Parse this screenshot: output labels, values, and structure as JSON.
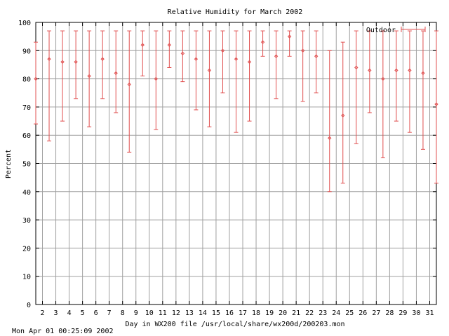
{
  "chart_data": {
    "type": "errorbar",
    "title": "Relative Humidity for March 2002",
    "xlabel": "Day in WX200 file /usr/local/share/wx200d/200203.mon",
    "ylabel": "Percent",
    "footer": "Mon Apr 01 00:25:09 2002",
    "xlim": [
      1.5,
      31.5
    ],
    "ylim": [
      0,
      100
    ],
    "x_ticks": [
      "2",
      "3",
      "4",
      "5",
      "6",
      "7",
      "8",
      "9",
      "10",
      "11",
      "12",
      "13",
      "14",
      "15",
      "16",
      "17",
      "18",
      "19",
      "20",
      "21",
      "22",
      "23",
      "24",
      "25",
      "26",
      "27",
      "28",
      "29",
      "30",
      "31"
    ],
    "y_ticks": [
      "0",
      "10",
      "20",
      "30",
      "40",
      "50",
      "60",
      "70",
      "80",
      "90",
      "100"
    ],
    "grid": true,
    "legend_position": "top-right",
    "series": [
      {
        "name": "Outdoor",
        "color": "#e05050",
        "points": [
          {
            "x": 1.5,
            "y": 80,
            "low": 64,
            "high": 93
          },
          {
            "x": 2.5,
            "y": 87,
            "low": 58,
            "high": 97
          },
          {
            "x": 3.5,
            "y": 86,
            "low": 65,
            "high": 97
          },
          {
            "x": 4.5,
            "y": 86,
            "low": 73,
            "high": 97
          },
          {
            "x": 5.5,
            "y": 81,
            "low": 63,
            "high": 97
          },
          {
            "x": 6.5,
            "y": 87,
            "low": 73,
            "high": 97
          },
          {
            "x": 7.5,
            "y": 82,
            "low": 68,
            "high": 97
          },
          {
            "x": 8.5,
            "y": 78,
            "low": 54,
            "high": 97
          },
          {
            "x": 9.5,
            "y": 92,
            "low": 81,
            "high": 97
          },
          {
            "x": 10.5,
            "y": 80,
            "low": 62,
            "high": 97
          },
          {
            "x": 11.5,
            "y": 92,
            "low": 84,
            "high": 97
          },
          {
            "x": 12.5,
            "y": 89,
            "low": 79,
            "high": 97
          },
          {
            "x": 13.5,
            "y": 87,
            "low": 69,
            "high": 97
          },
          {
            "x": 14.5,
            "y": 83,
            "low": 63,
            "high": 97
          },
          {
            "x": 15.5,
            "y": 90,
            "low": 75,
            "high": 97
          },
          {
            "x": 16.5,
            "y": 87,
            "low": 61,
            "high": 97
          },
          {
            "x": 17.5,
            "y": 86,
            "low": 65,
            "high": 97
          },
          {
            "x": 18.5,
            "y": 93,
            "low": 88,
            "high": 97
          },
          {
            "x": 19.5,
            "y": 88,
            "low": 73,
            "high": 97
          },
          {
            "x": 20.5,
            "y": 95,
            "low": 88,
            "high": 97
          },
          {
            "x": 21.5,
            "y": 90,
            "low": 72,
            "high": 97
          },
          {
            "x": 22.5,
            "y": 88,
            "low": 75,
            "high": 97
          },
          {
            "x": 23.5,
            "y": 59,
            "low": 40,
            "high": 90
          },
          {
            "x": 24.5,
            "y": 67,
            "low": 43,
            "high": 93
          },
          {
            "x": 25.5,
            "y": 84,
            "low": 57,
            "high": 97
          },
          {
            "x": 26.5,
            "y": 83,
            "low": 68,
            "high": 97
          },
          {
            "x": 27.5,
            "y": 80,
            "low": 52,
            "high": 97
          },
          {
            "x": 28.5,
            "y": 83,
            "low": 65,
            "high": 97
          },
          {
            "x": 29.5,
            "y": 83,
            "low": 61,
            "high": 97
          },
          {
            "x": 30.5,
            "y": 82,
            "low": 55,
            "high": 97
          },
          {
            "x": 31.5,
            "y": 71,
            "low": 43,
            "high": 97
          }
        ]
      }
    ]
  }
}
